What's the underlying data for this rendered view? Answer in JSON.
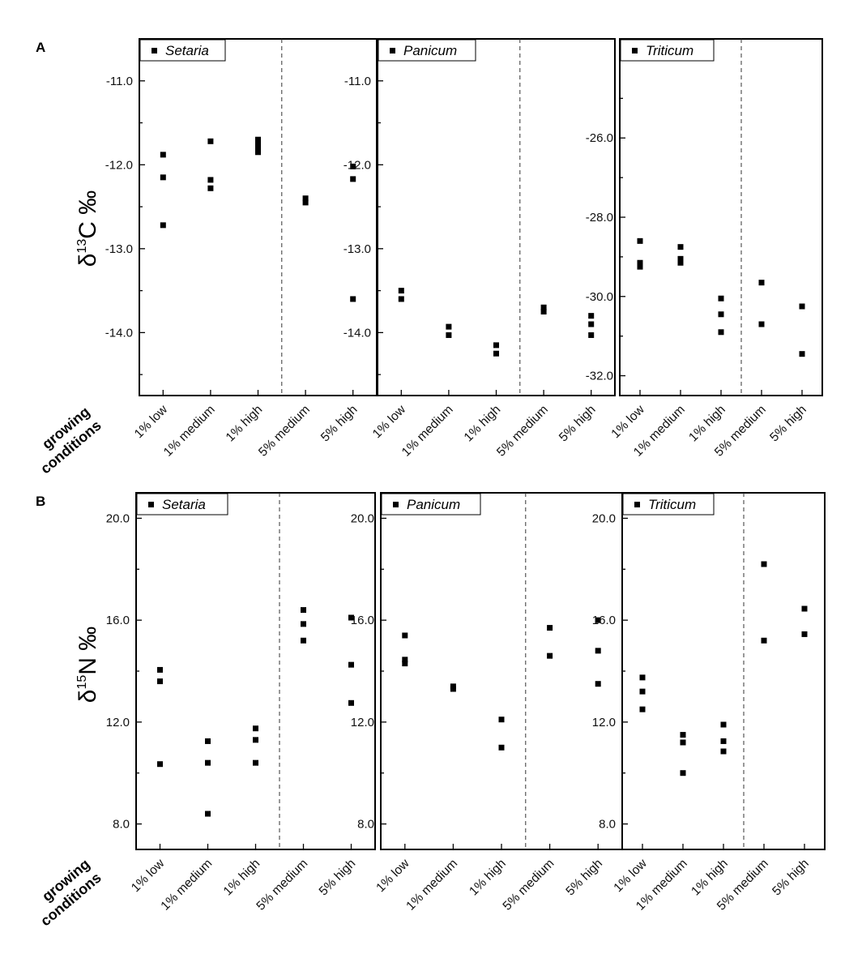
{
  "figure": {
    "panel_letters": [
      "A",
      "B"
    ],
    "side_title_line1": "growing",
    "side_title_line2": "conditions",
    "ylabel_A": {
      "delta": "δ",
      "sup": "13",
      "rest": "C ‰"
    },
    "ylabel_B": {
      "delta": "δ",
      "sup": "15",
      "rest": "N ‰"
    }
  },
  "chart_data": [
    {
      "type": "scatter",
      "panel": "A",
      "legend": "Setaria",
      "categories": [
        "1% low",
        "1% medium",
        "1% high",
        "5% medium",
        "5% high"
      ],
      "ylim": [
        -14.75,
        -10.5
      ],
      "yticks": [
        -11.0,
        -12.0,
        -13.0,
        -14.0
      ],
      "ytick_labels": [
        "-11.0",
        "-12.0",
        "-13.0",
        "-14.0"
      ],
      "reversed": true,
      "divider_after_index": 2,
      "points": [
        [
          0,
          -11.88
        ],
        [
          0,
          -12.15
        ],
        [
          0,
          -12.72
        ],
        [
          1,
          -11.72
        ],
        [
          1,
          -12.18
        ],
        [
          1,
          -12.28
        ],
        [
          2,
          -11.7
        ],
        [
          2,
          -11.75
        ],
        [
          2,
          -11.8
        ],
        [
          2,
          -11.85
        ],
        [
          3,
          -12.4
        ],
        [
          3,
          -12.45
        ],
        [
          4,
          -12.02
        ],
        [
          4,
          -12.17
        ],
        [
          4,
          -13.6
        ]
      ]
    },
    {
      "type": "scatter",
      "panel": "A",
      "legend": "Panicum",
      "categories": [
        "1% low",
        "1% medium",
        "1% high",
        "5% medium",
        "5% high"
      ],
      "ylim": [
        -14.75,
        -10.5
      ],
      "yticks": [
        -11.0,
        -12.0,
        -13.0,
        -14.0
      ],
      "ytick_labels": [
        "-11.0",
        "-12.0",
        "-13.0",
        "-14.0"
      ],
      "reversed": true,
      "divider_after_index": 2,
      "points": [
        [
          0,
          -13.5
        ],
        [
          0,
          -13.6
        ],
        [
          1,
          -13.93
        ],
        [
          1,
          -14.03
        ],
        [
          2,
          -14.15
        ],
        [
          2,
          -14.25
        ],
        [
          3,
          -13.7
        ],
        [
          3,
          -13.75
        ],
        [
          4,
          -13.8
        ],
        [
          4,
          -13.9
        ],
        [
          4,
          -14.03
        ]
      ]
    },
    {
      "type": "scatter",
      "panel": "A",
      "legend": "Triticum",
      "categories": [
        "1% low",
        "1% medium",
        "1% high",
        "5% medium",
        "5% high"
      ],
      "ylim": [
        -32.5,
        -23.5
      ],
      "yticks": [
        -26.0,
        -28.0,
        -30.0,
        -32.0
      ],
      "ytick_labels": [
        "-26.0",
        "-28.0",
        "-30.0",
        "-32.0"
      ],
      "reversed": true,
      "divider_after_index": 2,
      "points": [
        [
          0,
          -28.6
        ],
        [
          0,
          -29.15
        ],
        [
          0,
          -29.25
        ],
        [
          1,
          -28.75
        ],
        [
          1,
          -29.05
        ],
        [
          1,
          -29.15
        ],
        [
          2,
          -30.05
        ],
        [
          2,
          -30.45
        ],
        [
          2,
          -30.9
        ],
        [
          3,
          -29.65
        ],
        [
          3,
          -30.7
        ],
        [
          4,
          -30.25
        ],
        [
          4,
          -31.45
        ]
      ]
    },
    {
      "type": "scatter",
      "panel": "B",
      "legend": "Setaria",
      "categories": [
        "1% low",
        "1% medium",
        "1% high",
        "5% medium",
        "5% high"
      ],
      "ylim": [
        7.0,
        21.0
      ],
      "yticks": [
        8.0,
        12.0,
        16.0,
        20.0
      ],
      "ytick_labels": [
        "8.0",
        "12.0",
        "16.0",
        "20.0"
      ],
      "reversed": false,
      "divider_after_index": 2,
      "points": [
        [
          0,
          14.05
        ],
        [
          0,
          13.6
        ],
        [
          0,
          10.35
        ],
        [
          1,
          11.25
        ],
        [
          1,
          10.4
        ],
        [
          1,
          8.4
        ],
        [
          2,
          11.75
        ],
        [
          2,
          11.3
        ],
        [
          2,
          10.4
        ],
        [
          3,
          16.4
        ],
        [
          3,
          15.85
        ],
        [
          3,
          15.2
        ],
        [
          4,
          16.1
        ],
        [
          4,
          14.25
        ],
        [
          4,
          12.75
        ]
      ]
    },
    {
      "type": "scatter",
      "panel": "B",
      "legend": "Panicum",
      "categories": [
        "1% low",
        "1% medium",
        "1% high",
        "5% medium",
        "5% high"
      ],
      "ylim": [
        7.0,
        21.0
      ],
      "yticks": [
        8.0,
        12.0,
        16.0,
        20.0
      ],
      "ytick_labels": [
        "8.0",
        "12.0",
        "16.0",
        "20.0"
      ],
      "reversed": false,
      "divider_after_index": 2,
      "points": [
        [
          0,
          15.4
        ],
        [
          0,
          14.45
        ],
        [
          0,
          14.3
        ],
        [
          1,
          13.4
        ],
        [
          1,
          13.3
        ],
        [
          2,
          12.1
        ],
        [
          2,
          11.0
        ],
        [
          3,
          15.7
        ],
        [
          3,
          14.6
        ],
        [
          4,
          16.0
        ],
        [
          4,
          14.8
        ],
        [
          4,
          13.5
        ]
      ]
    },
    {
      "type": "scatter",
      "panel": "B",
      "legend": "Triticum",
      "categories": [
        "1% low",
        "1% medium",
        "1% high",
        "5% medium",
        "5% high"
      ],
      "ylim": [
        7.0,
        21.0
      ],
      "yticks": [
        8.0,
        12.0,
        16.0,
        20.0
      ],
      "ytick_labels": [
        "8.0",
        "12.0",
        "16.0",
        "20.0"
      ],
      "reversed": false,
      "divider_after_index": 2,
      "points": [
        [
          0,
          13.75
        ],
        [
          0,
          13.2
        ],
        [
          0,
          12.5
        ],
        [
          1,
          11.5
        ],
        [
          1,
          11.2
        ],
        [
          1,
          10.0
        ],
        [
          2,
          11.9
        ],
        [
          2,
          11.25
        ],
        [
          2,
          10.85
        ],
        [
          3,
          18.2
        ],
        [
          3,
          15.2
        ],
        [
          4,
          16.45
        ],
        [
          4,
          15.45
        ]
      ]
    }
  ]
}
